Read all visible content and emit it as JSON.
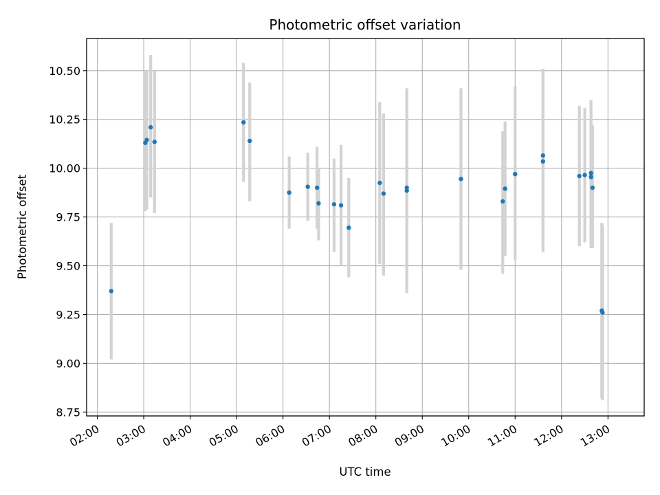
{
  "chart_data": {
    "type": "scatter",
    "title": "Photometric offset variation",
    "xlabel": "UTC time",
    "ylabel": "Photometric offset",
    "x_tick_labels": [
      "02:00",
      "03:00",
      "04:00",
      "05:00",
      "06:00",
      "07:00",
      "08:00",
      "09:00",
      "10:00",
      "11:00",
      "12:00",
      "13:00"
    ],
    "y_tick_labels": [
      "8.75",
      "9.00",
      "9.25",
      "9.50",
      "9.75",
      "10.00",
      "10.25",
      "10.50"
    ],
    "x_ticks_hours": [
      2,
      3,
      4,
      5,
      6,
      7,
      8,
      9,
      10,
      11,
      12,
      13
    ],
    "y_ticks": [
      8.75,
      9.0,
      9.25,
      9.5,
      9.75,
      10.0,
      10.25,
      10.5
    ],
    "xlim_hours": [
      1.77,
      13.78
    ],
    "ylim": [
      8.73,
      10.665
    ],
    "grid": true,
    "colors": {
      "point": "#1f77b4",
      "errorbar": "#d3d3d3",
      "grid": "#b0b0b0"
    },
    "points": [
      {
        "x": "02:18",
        "y": 9.37,
        "lo": 9.02,
        "hi": 9.72
      },
      {
        "x": "03:02",
        "y": 10.13,
        "lo": 9.78,
        "hi": 10.5
      },
      {
        "x": "03:04",
        "y": 10.145,
        "lo": 9.79,
        "hi": 10.5
      },
      {
        "x": "03:09",
        "y": 10.21,
        "lo": 9.85,
        "hi": 10.58
      },
      {
        "x": "03:14",
        "y": 10.135,
        "lo": 9.77,
        "hi": 10.5
      },
      {
        "x": "05:09",
        "y": 10.235,
        "lo": 9.93,
        "hi": 10.54
      },
      {
        "x": "05:17",
        "y": 10.14,
        "lo": 9.83,
        "hi": 10.44
      },
      {
        "x": "06:08",
        "y": 9.875,
        "lo": 9.69,
        "hi": 10.06
      },
      {
        "x": "06:32",
        "y": 9.905,
        "lo": 9.73,
        "hi": 10.08
      },
      {
        "x": "06:44",
        "y": 9.9,
        "lo": 9.69,
        "hi": 10.11
      },
      {
        "x": "06:46",
        "y": 9.82,
        "lo": 9.63,
        "hi": 10.0
      },
      {
        "x": "07:06",
        "y": 9.815,
        "lo": 9.57,
        "hi": 10.05
      },
      {
        "x": "07:15",
        "y": 9.81,
        "lo": 9.5,
        "hi": 10.12
      },
      {
        "x": "07:25",
        "y": 9.695,
        "lo": 9.44,
        "hi": 9.95
      },
      {
        "x": "08:05",
        "y": 9.925,
        "lo": 9.51,
        "hi": 10.34
      },
      {
        "x": "08:10",
        "y": 9.87,
        "lo": 9.45,
        "hi": 10.28
      },
      {
        "x": "08:40",
        "y": 9.9,
        "lo": 9.4,
        "hi": 10.41
      },
      {
        "x": "08:40",
        "y": 9.885,
        "lo": 9.36,
        "hi": 10.39
      },
      {
        "x": "09:50",
        "y": 9.945,
        "lo": 9.48,
        "hi": 10.41
      },
      {
        "x": "10:44",
        "y": 9.83,
        "lo": 9.46,
        "hi": 10.19
      },
      {
        "x": "10:47",
        "y": 9.895,
        "lo": 9.55,
        "hi": 10.24
      },
      {
        "x": "11:00",
        "y": 9.97,
        "lo": 9.53,
        "hi": 10.42
      },
      {
        "x": "11:36",
        "y": 10.065,
        "lo": 9.62,
        "hi": 10.51
      },
      {
        "x": "11:36",
        "y": 10.035,
        "lo": 9.57,
        "hi": 10.5
      },
      {
        "x": "12:23",
        "y": 9.96,
        "lo": 9.6,
        "hi": 10.32
      },
      {
        "x": "12:30",
        "y": 9.965,
        "lo": 9.62,
        "hi": 10.31
      },
      {
        "x": "12:38",
        "y": 9.975,
        "lo": 9.6,
        "hi": 10.35
      },
      {
        "x": "12:38",
        "y": 9.955,
        "lo": 9.59,
        "hi": 10.31
      },
      {
        "x": "12:40",
        "y": 9.9,
        "lo": 9.59,
        "hi": 10.22
      },
      {
        "x": "12:52",
        "y": 9.27,
        "lo": 8.82,
        "hi": 9.72
      },
      {
        "x": "12:53",
        "y": 9.26,
        "lo": 8.81,
        "hi": 9.71
      }
    ]
  }
}
